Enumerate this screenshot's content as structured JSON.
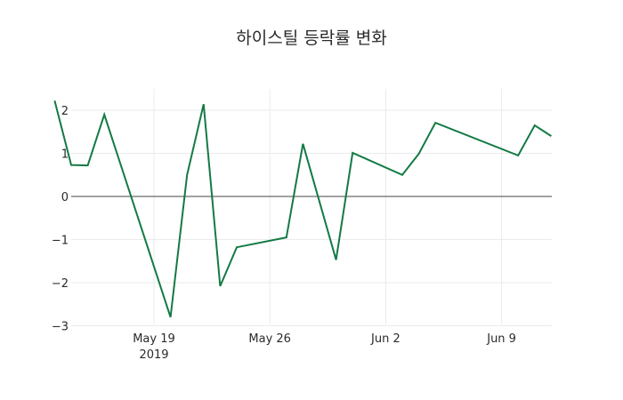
{
  "chart_data": {
    "type": "line",
    "title": "하이스틸 등락률 변화",
    "xlabel": "",
    "ylabel": "",
    "ylim": [
      -3,
      2.4
    ],
    "grid": true,
    "line_color": "#137a44",
    "x": [
      "2019-05-13",
      "2019-05-14",
      "2019-05-15",
      "2019-05-16",
      "2019-05-20",
      "2019-05-21",
      "2019-05-22",
      "2019-05-23",
      "2019-05-24",
      "2019-05-27",
      "2019-05-28",
      "2019-05-30",
      "2019-05-31",
      "2019-06-03",
      "2019-06-04",
      "2019-06-05",
      "2019-06-10",
      "2019-06-11",
      "2019-06-12"
    ],
    "series": [
      {
        "name": "등락률",
        "values": [
          2.22,
          0.73,
          0.72,
          1.9,
          -2.8,
          0.5,
          2.14,
          -2.08,
          -1.18,
          -0.95,
          1.22,
          -1.47,
          1.01,
          0.5,
          0.99,
          1.71,
          0.95,
          1.65,
          1.4
        ]
      }
    ],
    "x_ticks": [
      {
        "label": "May 19",
        "sub": "2019",
        "date": "2019-05-19"
      },
      {
        "label": "May 26",
        "sub": "",
        "date": "2019-05-26"
      },
      {
        "label": "Jun 2",
        "sub": "",
        "date": "2019-06-02"
      },
      {
        "label": "Jun 9",
        "sub": "",
        "date": "2019-06-09"
      }
    ],
    "y_ticks": [
      2,
      1,
      0,
      -1,
      -2,
      -3
    ],
    "y_tick_labels": [
      "2",
      "1",
      "0",
      "−1",
      "−2",
      "−3"
    ]
  }
}
